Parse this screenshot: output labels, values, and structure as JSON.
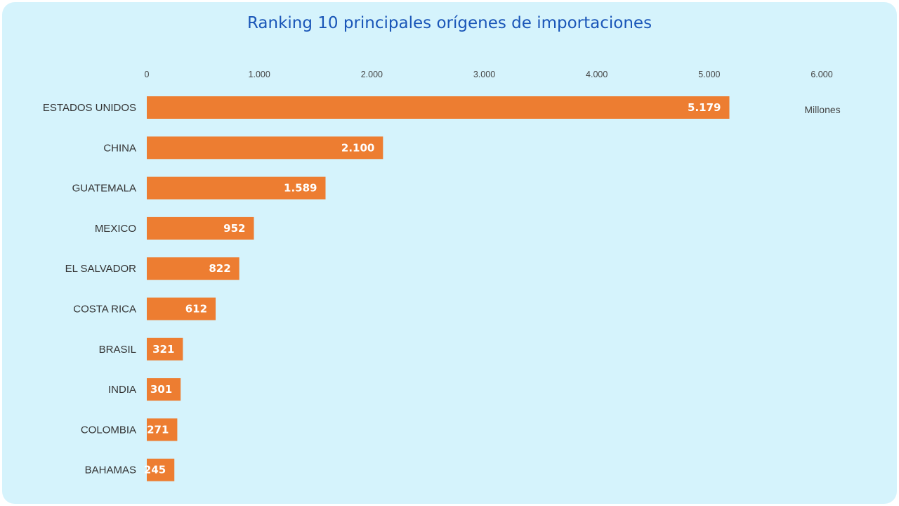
{
  "chart_data": {
    "type": "bar",
    "orientation": "horizontal",
    "title": "Ranking 10 principales orígenes de importaciones",
    "unit_label": "Millones",
    "xlim": [
      0,
      6000
    ],
    "ticks": [
      0,
      1000,
      2000,
      3000,
      4000,
      5000,
      6000
    ],
    "tick_labels": [
      "0",
      "1.000",
      "2.000",
      "3.000",
      "4.000",
      "5.000",
      "6.000"
    ],
    "axis_position": "top",
    "grid": false,
    "bar_color": "#ed7d31",
    "categories": [
      "ESTADOS UNIDOS",
      "CHINA",
      "GUATEMALA",
      "MEXICO",
      "EL SALVADOR",
      "COSTA RICA",
      "BRASIL",
      "INDIA",
      "COLOMBIA",
      "BAHAMAS"
    ],
    "values": [
      5179,
      2100,
      1589,
      952,
      822,
      612,
      321,
      301,
      271,
      245
    ],
    "value_labels": [
      "5.179",
      "2.100",
      "1.589",
      "952",
      "822",
      "612",
      "321",
      "301",
      "271",
      "245"
    ]
  }
}
